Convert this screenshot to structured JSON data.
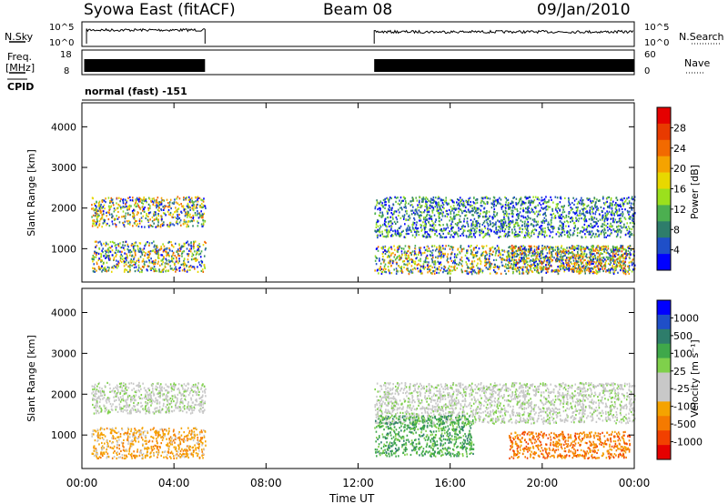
{
  "header": {
    "station": "Syowa East (fitACF)",
    "beam": "Beam 08",
    "date": "09/Jan/2010"
  },
  "strips": {
    "nsky_label": "N.Sky",
    "noise_ticks": [
      "10^5",
      "10^0"
    ],
    "nsearch_label": "N.Search",
    "freq_label_line1": "Freq.",
    "freq_label_line2": "[MHz]",
    "freq_ticks": [
      "18",
      "8"
    ],
    "nave_ticks": [
      "60",
      "0"
    ],
    "nave_label": "Nave",
    "cpid_label": "CPID",
    "cpid_text": "normal (fast) -151"
  },
  "colors": {
    "power_scale": [
      "#0000ff",
      "#1f4fc8",
      "#2e7d6b",
      "#4caf50",
      "#9be01d",
      "#e8d800",
      "#f5a300",
      "#f26a00",
      "#e83a00",
      "#e50000"
    ],
    "velocity_scale": [
      "#e50000",
      "#f24000",
      "#f57a00",
      "#f5a300",
      "#c8c8c8",
      "#c8c8c8",
      "#7fd04b",
      "#3fa84a",
      "#2e7d6b",
      "#1f4fc8",
      "#0000ff"
    ]
  },
  "chart_data": [
    {
      "type": "heatmap",
      "panel": "power",
      "ylabel": "Slant Range [km]",
      "ylim": [
        180,
        4590
      ],
      "yticks": [
        "4000",
        "3000",
        "2000",
        "1000"
      ],
      "xlabel": "Time UT",
      "xlim_hours": [
        0,
        24
      ],
      "xticks": [
        "00:00",
        "04:00",
        "08:00",
        "12:00",
        "16:00",
        "20:00",
        "00:00"
      ],
      "colorbar_label": "Power [dB]",
      "colorbar_ticks": [
        "28",
        "24",
        "20",
        "16",
        "12",
        "8",
        "4"
      ],
      "data_gap_hours": [
        5.35,
        12.7
      ],
      "echo_regions": [
        {
          "t": [
            0.4,
            5.35
          ],
          "range_km": [
            1550,
            2300
          ],
          "level": "moderate",
          "peak_db": 20
        },
        {
          "t": [
            0.4,
            5.35
          ],
          "range_km": [
            450,
            1200
          ],
          "level": "moderate",
          "peak_db": 20
        },
        {
          "t": [
            12.7,
            24.0
          ],
          "range_km": [
            1300,
            2300
          ],
          "level": "weak",
          "peak_db": 12
        },
        {
          "t": [
            12.7,
            24.0
          ],
          "range_km": [
            400,
            1100
          ],
          "level": "moderate",
          "peak_db": 20
        },
        {
          "t": [
            18.5,
            23.8
          ],
          "range_km": [
            450,
            1100
          ],
          "level": "strong",
          "peak_db": 24
        }
      ]
    },
    {
      "type": "heatmap",
      "panel": "velocity",
      "ylabel": "Slant Range [km]",
      "ylim": [
        180,
        4590
      ],
      "yticks": [
        "4000",
        "3000",
        "2000",
        "1000"
      ],
      "xlabel": "Time UT",
      "xlim_hours": [
        0,
        24
      ],
      "xticks": [
        "00:00",
        "04:00",
        "08:00",
        "12:00",
        "16:00",
        "20:00",
        "00:00"
      ],
      "colorbar_label": "Velocity [m s⁻¹]",
      "colorbar_ticks": [
        "1000",
        "500",
        "100",
        "25",
        "-25",
        "-100",
        "-500",
        "-1000"
      ],
      "data_gap_hours": [
        5.35,
        12.7
      ],
      "echo_regions": [
        {
          "t": [
            0.4,
            5.35
          ],
          "range_km": [
            1550,
            2300
          ],
          "vel_ms": 0
        },
        {
          "t": [
            0.4,
            5.35
          ],
          "range_km": [
            450,
            1200
          ],
          "vel_ms": -200
        },
        {
          "t": [
            12.7,
            24.0
          ],
          "range_km": [
            1300,
            2300
          ],
          "vel_ms": 0
        },
        {
          "t": [
            12.7,
            17.0
          ],
          "range_km": [
            500,
            1500
          ],
          "vel_ms": 150
        },
        {
          "t": [
            18.5,
            23.8
          ],
          "range_km": [
            450,
            1100
          ],
          "vel_ms": -300
        }
      ]
    }
  ]
}
